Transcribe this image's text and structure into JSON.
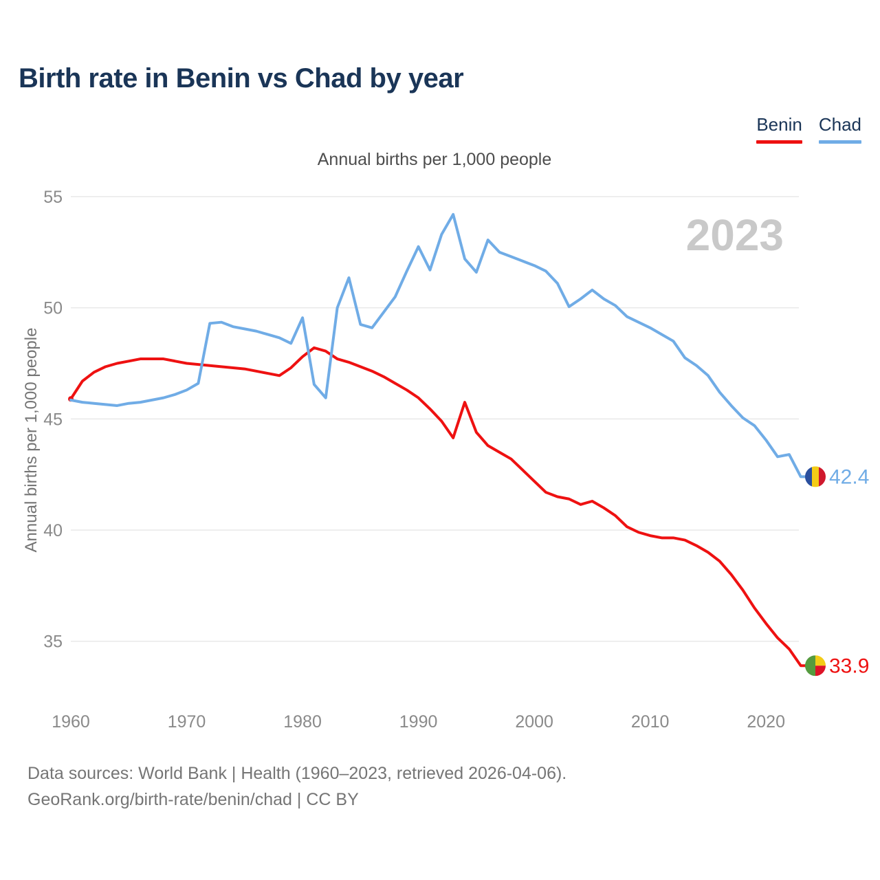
{
  "header": {
    "title": "Birth rate in Benin vs Chad by year"
  },
  "legend": [
    {
      "label": "Benin",
      "color": "#ee1111"
    },
    {
      "label": "Chad",
      "color": "#70ace6"
    }
  ],
  "subtitle": "Annual births per 1,000 people",
  "y_axis_title": "Annual births per 1,000 people",
  "watermark": "2023",
  "footer": {
    "line1": "Data sources: World Bank | Health (1960–2023, retrieved 2026-04-06).",
    "line2": "GeoRank.org/birth-rate/benin/chad | CC BY"
  },
  "colors": {
    "benin_line": "#ee1111",
    "chad_line": "#70ace6",
    "title_navy": "#1a3557",
    "grid": "#e9e9e9",
    "tick_text": "#8a8a8a",
    "watermark": "#c9c9c9"
  },
  "flags": {
    "chad": {
      "blue": "#2a4f9e",
      "yellow": "#f3cc17",
      "red": "#cf182d"
    },
    "benin": {
      "green": "#559b3e",
      "yellow": "#f3cc17",
      "red": "#dd1327"
    }
  },
  "chart_data": {
    "type": "line",
    "title": "Birth rate in Benin vs Chad by year",
    "subtitle": "Annual births per 1,000 people",
    "xlabel": "",
    "ylabel": "Annual births per 1,000 people",
    "ylim": [
      33,
      56
    ],
    "y_ticks": [
      55,
      50,
      45,
      40,
      35
    ],
    "x_ticks": [
      1960,
      1970,
      1980,
      1990,
      2000,
      2010,
      2020
    ],
    "grid": "horizontal",
    "legend_position": "top-right",
    "watermark": "2023",
    "x": [
      1960,
      1961,
      1962,
      1963,
      1964,
      1965,
      1966,
      1967,
      1968,
      1969,
      1970,
      1971,
      1972,
      1973,
      1974,
      1975,
      1976,
      1977,
      1978,
      1979,
      1980,
      1981,
      1982,
      1983,
      1984,
      1985,
      1986,
      1987,
      1988,
      1989,
      1990,
      1991,
      1992,
      1993,
      1994,
      1995,
      1996,
      1997,
      1998,
      1999,
      2000,
      2001,
      2002,
      2003,
      2004,
      2005,
      2006,
      2007,
      2008,
      2009,
      2010,
      2011,
      2012,
      2013,
      2014,
      2015,
      2016,
      2017,
      2018,
      2019,
      2020,
      2021,
      2022,
      2023
    ],
    "series": [
      {
        "name": "Benin",
        "color": "#ee1111",
        "end_label": "33.9",
        "values": [
          45.9,
          46.7,
          47.1,
          47.35,
          47.5,
          47.6,
          47.7,
          47.7,
          47.7,
          47.6,
          47.5,
          47.45,
          47.4,
          47.35,
          47.3,
          47.25,
          47.15,
          47.05,
          46.95,
          47.3,
          47.8,
          48.2,
          48.05,
          47.7,
          47.55,
          47.35,
          47.15,
          46.9,
          46.6,
          46.3,
          45.95,
          45.45,
          44.9,
          44.15,
          45.75,
          44.4,
          43.8,
          43.5,
          43.2,
          42.7,
          42.2,
          41.7,
          41.5,
          41.4,
          41.15,
          41.3,
          41.0,
          40.65,
          40.15,
          39.9,
          39.75,
          39.65,
          39.65,
          39.55,
          39.3,
          39.0,
          38.6,
          38.0,
          37.3,
          36.5,
          35.8,
          35.15,
          34.65,
          33.9
        ]
      },
      {
        "name": "Chad",
        "color": "#70ace6",
        "end_label": "42.4",
        "values": [
          45.85,
          45.75,
          45.7,
          45.65,
          45.6,
          45.7,
          45.75,
          45.85,
          45.95,
          46.1,
          46.3,
          46.6,
          49.3,
          49.35,
          49.15,
          49.05,
          48.95,
          48.8,
          48.65,
          48.4,
          49.55,
          46.55,
          45.95,
          50.0,
          51.35,
          49.25,
          49.1,
          49.8,
          50.5,
          51.65,
          52.75,
          51.7,
          53.3,
          54.2,
          52.2,
          51.6,
          53.05,
          52.5,
          52.3,
          52.1,
          51.9,
          51.65,
          51.1,
          50.05,
          50.4,
          50.8,
          50.4,
          50.1,
          49.6,
          49.35,
          49.1,
          48.8,
          48.5,
          47.75,
          47.4,
          46.95,
          46.2,
          45.6,
          45.05,
          44.7,
          44.05,
          43.3,
          43.4,
          42.4
        ]
      }
    ]
  }
}
